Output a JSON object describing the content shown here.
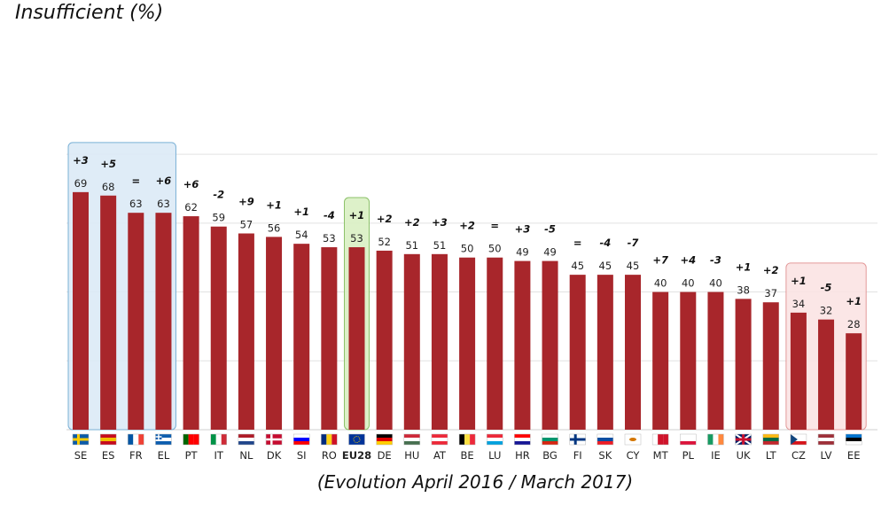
{
  "chart_data": {
    "type": "bar",
    "title": "Insufficient (%)",
    "subtitle": "(Evolution April 2016 / March 2017)",
    "categories": [
      "SE",
      "ES",
      "FR",
      "EL",
      "PT",
      "IT",
      "NL",
      "DK",
      "SI",
      "RO",
      "EU28",
      "DE",
      "HU",
      "AT",
      "BE",
      "LU",
      "HR",
      "BG",
      "FI",
      "SK",
      "CY",
      "MT",
      "PL",
      "IE",
      "UK",
      "LT",
      "CZ",
      "LV",
      "EE"
    ],
    "values": [
      69,
      68,
      63,
      63,
      62,
      59,
      57,
      56,
      54,
      53,
      53,
      52,
      51,
      51,
      50,
      50,
      49,
      49,
      45,
      45,
      45,
      40,
      40,
      40,
      38,
      37,
      34,
      32,
      28
    ],
    "changes": [
      "+3",
      "+5",
      "=",
      "+6",
      "+6",
      "-2",
      "+9",
      "+1",
      "+1",
      "-4",
      "+1",
      "+2",
      "+2",
      "+3",
      "+2",
      "=",
      "+3",
      "-5",
      "=",
      "-4",
      "-7",
      "+7",
      "+4",
      "-3",
      "+1",
      "+2",
      "+1",
      "-5",
      "+1"
    ],
    "ylim": [
      0,
      80
    ],
    "gridlines": true,
    "highlight_groups": [
      {
        "categories": [
          "SE",
          "ES",
          "FR",
          "EL"
        ],
        "color": "#dbeaf6",
        "border": "#7ab0d6"
      },
      {
        "categories": [
          "EU28"
        ],
        "color": "#d9efc3",
        "border": "#8cc16a"
      },
      {
        "categories": [
          "CZ",
          "LV",
          "EE"
        ],
        "color": "#fbe3e3",
        "border": "#e39a9a"
      }
    ],
    "bar_color": "#a8262b"
  }
}
